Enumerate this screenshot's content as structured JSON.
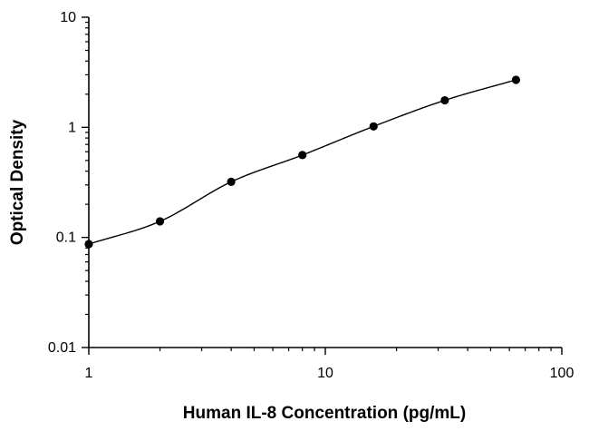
{
  "chart_data": {
    "type": "scatter",
    "title": "",
    "xlabel": "Human IL-8 Concentration (pg/mL)",
    "ylabel": "Optical Density",
    "x_scale": "log",
    "y_scale": "log",
    "xlim": [
      1,
      100
    ],
    "ylim": [
      0.01,
      10
    ],
    "x_ticks": [
      "1",
      "10",
      "100"
    ],
    "y_ticks": [
      "0.01",
      "0.1",
      "1",
      "10"
    ],
    "grid": false,
    "legend": "none",
    "series": [
      {
        "x": [
          1,
          2,
          4,
          8,
          16,
          32,
          64
        ],
        "y": [
          0.087,
          0.14,
          0.32,
          0.56,
          1.02,
          1.76,
          2.7
        ],
        "fit_curve": true
      }
    ],
    "colors": {
      "points": "#000000",
      "curve": "#000000",
      "axes": "#000000"
    }
  }
}
